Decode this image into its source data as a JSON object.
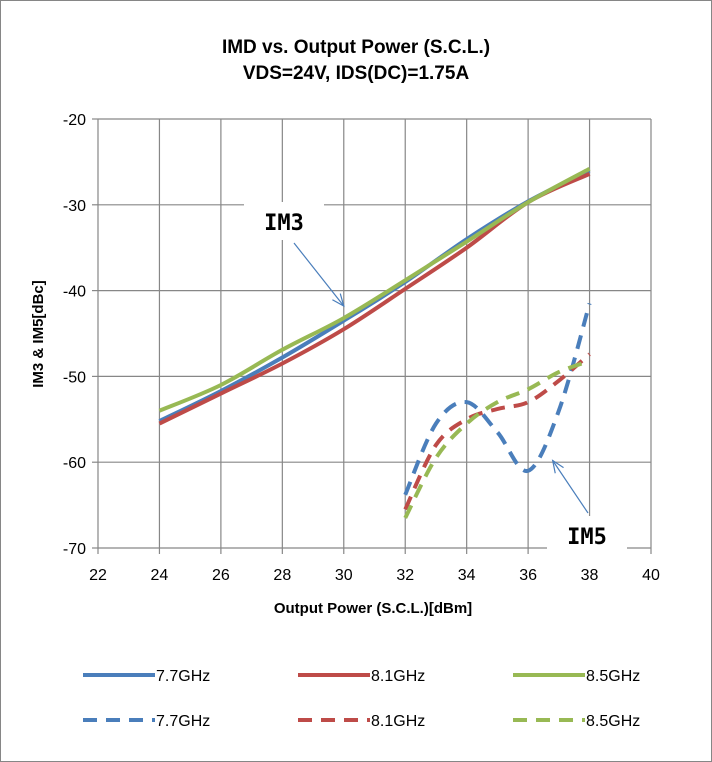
{
  "chart_data": {
    "type": "line",
    "title": "IMD vs. Output Power (S.C.L.)",
    "subtitle": "VDS=24V, IDS(DC)=1.75A",
    "xlabel": "Output Power (S.C.L.)[dBm]",
    "ylabel": "IM3 & IM5[dBc]",
    "xlim": [
      22,
      40
    ],
    "ylim": [
      -70,
      -20
    ],
    "x_ticks": [
      "22",
      "24",
      "26",
      "28",
      "30",
      "32",
      "34",
      "36",
      "38",
      "40"
    ],
    "y_ticks": [
      "-20",
      "-30",
      "-40",
      "-50",
      "-60",
      "-70"
    ],
    "grid": true,
    "legend_position": "bottom",
    "series": [
      {
        "name": "7.7GHz",
        "style": "solid",
        "color": "#4a7ebb",
        "x": [
          24,
          26,
          28,
          30,
          32,
          34,
          36,
          38
        ],
        "y": [
          -55.2,
          -51.7,
          -47.8,
          -43.5,
          -39.0,
          -34.0,
          -29.6,
          -26.0
        ]
      },
      {
        "name": "8.1GHz",
        "style": "solid",
        "color": "#be4b48",
        "x": [
          24,
          26,
          28,
          30,
          32,
          34,
          36,
          38
        ],
        "y": [
          -55.5,
          -52.0,
          -48.5,
          -44.5,
          -39.8,
          -35.0,
          -29.7,
          -26.4
        ]
      },
      {
        "name": "8.5GHz",
        "style": "solid",
        "color": "#98b954",
        "x": [
          24,
          26,
          28,
          30,
          32,
          34,
          36,
          38
        ],
        "y": [
          -54.0,
          -51.0,
          -46.9,
          -43.2,
          -38.8,
          -34.3,
          -29.7,
          -25.8
        ]
      },
      {
        "name": "7.7GHz",
        "style": "dashed",
        "color": "#4a7ebb",
        "x": [
          32,
          33,
          34,
          35,
          36,
          37,
          38
        ],
        "y": [
          -63.8,
          -55.5,
          -53.0,
          -56.5,
          -61.0,
          -54.0,
          -41.5
        ]
      },
      {
        "name": "8.1GHz",
        "style": "dashed",
        "color": "#be4b48",
        "x": [
          32,
          33,
          34,
          35,
          36,
          37,
          38
        ],
        "y": [
          -65.5,
          -58.0,
          -55.0,
          -53.8,
          -53.0,
          -50.5,
          -47.4
        ]
      },
      {
        "name": "8.5GHz",
        "style": "dashed",
        "color": "#98b954",
        "x": [
          32,
          33,
          34,
          35,
          36,
          37,
          38
        ],
        "y": [
          -66.5,
          -59.5,
          -55.5,
          -53.0,
          -51.5,
          -49.5,
          -48.2
        ]
      }
    ],
    "annotations": [
      {
        "text": "IM3",
        "arrow_to": [
          30,
          -41.8
        ]
      },
      {
        "text": "IM5",
        "arrow_to": [
          36.8,
          -59.8
        ]
      }
    ]
  }
}
